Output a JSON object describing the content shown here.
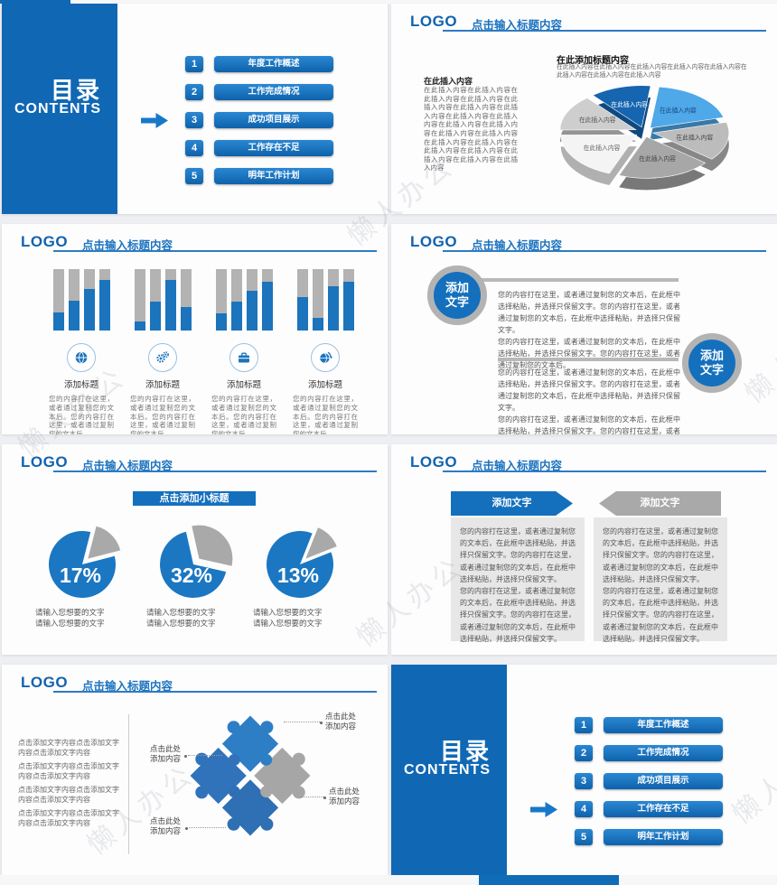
{
  "watermark": {
    "text": "懒人办公"
  },
  "header": {
    "logo": "LOGO",
    "title": "点击输入标题内容"
  },
  "toc": {
    "title": "目录",
    "subtitle": "CONTENTS",
    "items": [
      {
        "num": "1",
        "label": "年度工作概述"
      },
      {
        "num": "2",
        "label": "工作完成情况"
      },
      {
        "num": "3",
        "label": "成功项目展示"
      },
      {
        "num": "4",
        "label": "工作存在不足"
      },
      {
        "num": "5",
        "label": "明年工作计划"
      }
    ]
  },
  "pie3d": {
    "left_title": "在此插入内容",
    "left_body": "在此插入内容在此插入内容在此插入内容在此插入内容在此插入内容在此插入内容在此插入内容在此插入内容在此插入内容在此插入内容在此插入内容在此插入内容在此插入内容在此插入内容在此插入内容在此插入内容在此插入内容在此插入内容在此插入内容在此插入内容",
    "title": "在此添加标题内容",
    "subtitle": "在此插入内容在此插入内容在此插入内容在此插入内容在此插入内容在此插入内容在此插入内容在此插入内容"
  },
  "bars": {
    "title": "添加标题",
    "body": "您的内容打在这里，或者通过复制您的文本后。您的内容打在这里，或者通过复制您的文本后。",
    "icons": [
      "globe-icon",
      "gears-icon",
      "briefcase-icon",
      "globe-sync-icon"
    ]
  },
  "circles": {
    "badge": "添加\n文字",
    "para": "您的内容打在这里，或者通过复制您的文本后，在此框中选择粘贴，并选择只保留文字。您的内容打在这里，或者通过复制您的文本后，在此框中选择粘贴，并选择只保留文字。\n您的内容打在这里，或者通过复制您的文本后，在此框中选择粘贴，并选择只保留文字。您的内容打在这里，或者通过复制您的文本后。"
  },
  "percent": {
    "banner": "点击添加小标题",
    "caption": "请输入您想要的文字\n请输入您想要的文字"
  },
  "arrows": {
    "label": "添加文字",
    "body": "您的内容打在这里，或者通过复制您的文本后，在此框中选择粘贴，并选择只保留文字。您的内容打在这里，或者通过复制您的文本后，在此框中选择粘贴，并选择只保留文字。\n您的内容打在这里，或者通过复制您的文本后，在此框中选择粘贴，并选择只保留文字。您的内容打在这里，或者通过复制您的文本后，在此框中选择粘贴，并选择只保留文字。"
  },
  "puzzle": {
    "left_paragraphs": [
      "点击添加文字内容点击添加文字内容点击添加文字内容",
      "点击添加文字内容点击添加文字内容点击添加文字内容",
      "点击添加文字内容点击添加文字内容点击添加文字内容",
      "点击添加文字内容点击添加文字内容点击添加文字内容"
    ],
    "callout": "点击此处\n添加内容"
  },
  "chart_data": [
    {
      "type": "pie",
      "variant": "3d-exploded",
      "slide": "row1-right",
      "title": "在此添加标题内容",
      "labels": [
        "在此插入内容",
        "在此插入内容",
        "在此插入内容",
        "在此插入内容",
        "在此插入内容",
        "在此插入内容"
      ],
      "values": [
        13,
        19,
        15,
        20,
        19,
        14
      ],
      "colors": [
        "#1565b0",
        "#4fa8e8",
        "#bcbcbc",
        "#a7a7a7",
        "#f4f4f4",
        "#cecece"
      ],
      "label_colors": [
        "#ffffff",
        "#16467e",
        "#444444",
        "#444444",
        "#666666",
        "#555555"
      ],
      "note": "slice sizes estimated from image; no numeric labels shown"
    },
    {
      "type": "bar",
      "slide": "row2-left",
      "ylim": [
        0,
        100
      ],
      "unit": "percent of column filled (estimated)",
      "categories": [
        "添加标题",
        "添加标题",
        "添加标题",
        "添加标题"
      ],
      "groups": [
        [
          30,
          48,
          67,
          82
        ],
        [
          15,
          47,
          82,
          38
        ],
        [
          28,
          47,
          65,
          80
        ],
        [
          55,
          20,
          72,
          80
        ]
      ],
      "bar_color": "#1b74bc",
      "track_color": "#b3b3b3"
    },
    {
      "type": "pie",
      "slide": "row3-left",
      "variant": "exploded-slice",
      "values": [
        17,
        32,
        13
      ],
      "labels": [
        "17%",
        "32%",
        "13%"
      ],
      "main_color": "#1b77c2",
      "slice_color": "#a9a9a9"
    }
  ]
}
